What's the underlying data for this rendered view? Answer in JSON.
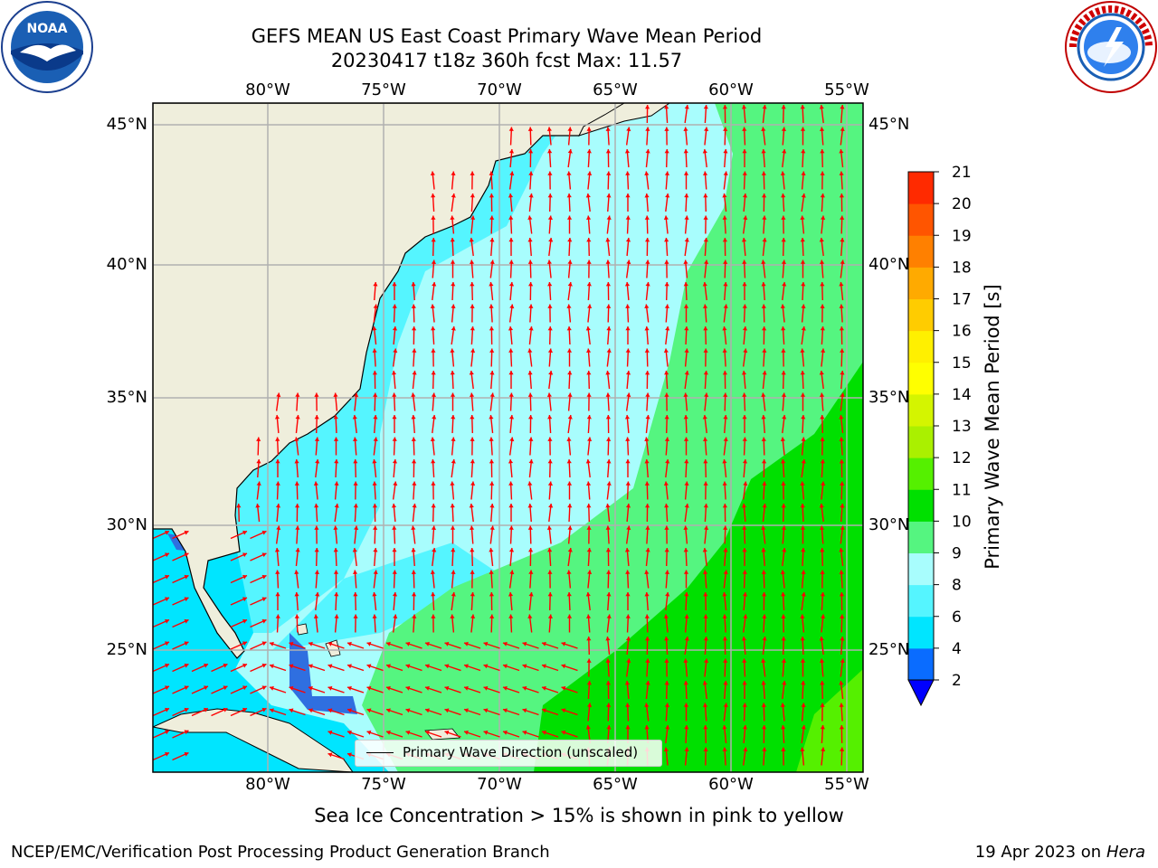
{
  "title": {
    "line1": "GEFS MEAN US East Coast Primary Wave Mean Period",
    "line2": "20230417 t18z 360h fcst   Max: 11.57"
  },
  "logos": {
    "noaa": {
      "text": "NOAA",
      "ring_text": "NATIONAL OCEANIC AND ATMOSPHERIC ADMINISTRATION · U.S. DEPARTMENT OF COMMERCE"
    },
    "nws": {
      "ring_text": "NATIONAL WEATHER SERVICE"
    }
  },
  "map": {
    "top_lon_labels": [
      "80°W",
      "75°W",
      "70°W",
      "65°W",
      "60°W",
      "55°W"
    ],
    "bottom_lon_labels": [
      "80°W",
      "75°W",
      "70°W",
      "65°W",
      "60°W",
      "55°W"
    ],
    "left_lat_labels": [
      "45°N",
      "40°N",
      "35°N",
      "30°N",
      "25°N"
    ],
    "right_lat_labels": [
      "45°N",
      "40°N",
      "35°N",
      "30°N",
      "25°N"
    ],
    "legend_label": "Primary Wave Direction (unscaled)",
    "colors": {
      "land": "#efeedc",
      "grid": "#b0b0b0",
      "arrow": "#ff0000"
    }
  },
  "colorbar": {
    "title": "Primary Wave Mean Period [s]",
    "ticks": [
      "2",
      "4",
      "6",
      "8",
      "9",
      "10",
      "11",
      "12",
      "13",
      "14",
      "15",
      "16",
      "17",
      "18",
      "19",
      "20",
      "21"
    ],
    "colors": [
      "#0a6cff",
      "#00e5ff",
      "#55f5ff",
      "#a8fdfd",
      "#55f580",
      "#00e000",
      "#55f000",
      "#aaf000",
      "#d4f500",
      "#ffff00",
      "#fff000",
      "#ffcc00",
      "#ffaa00",
      "#ff8000",
      "#ff5500",
      "#ff2a00",
      "#ff0000"
    ],
    "under_color": "#0000ff"
  },
  "ice_note": "Sea Ice Concentration > 15% is shown in pink to yellow",
  "footer": {
    "left": "NCEP/EMC/Verification Post Processing Product Generation Branch",
    "right_prefix": "19 Apr 2023 on ",
    "right_machine": "Hera"
  }
}
